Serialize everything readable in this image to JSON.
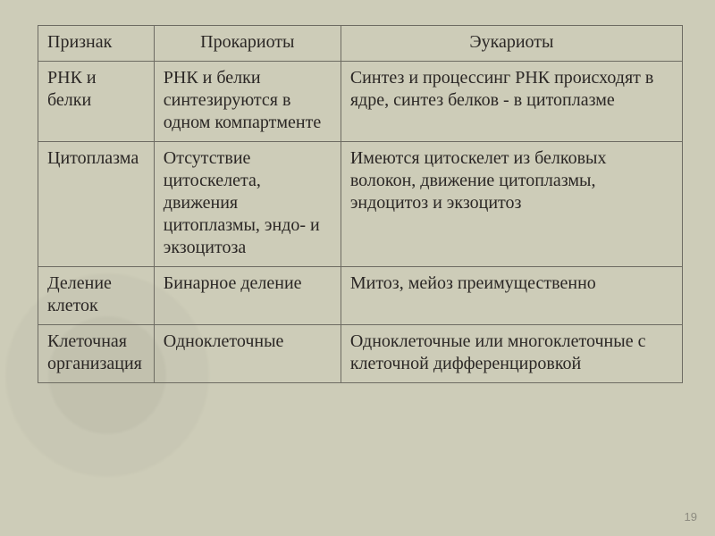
{
  "table": {
    "background_color": "#cdccb8",
    "border_color": "#6d6b62",
    "text_color": "#2b2725",
    "font_family": "Georgia, serif",
    "font_size_pt": 15,
    "column_widths_pct": [
      18,
      29,
      53
    ],
    "headers": [
      "Признак",
      "Прокариоты",
      "Эукариоты"
    ],
    "rows": [
      {
        "c0": "РНК и белки",
        "c1": "РНК и белки синтезируются в одном компартменте",
        "c2": "Синтез и процессинг РНК происходят в ядре, синтез белков - в цитоплазме"
      },
      {
        "c0": "Цитоплазма",
        "c1": "Отсутствие цитоскелета, движения цитоплазмы, эндо- и экзоцитоза",
        "c2": "Имеются цитоскелет из белковых волокон, движение цитоплазмы, эндоцитоз и экзоцитоз"
      },
      {
        "c0": "Деление клеток",
        "c1": "Бинарное деление",
        "c2": "Митоз, мейоз преимущественно"
      },
      {
        "c0": "Клеточная организация",
        "c1": "Одноклеточные",
        "c2": "Одноклеточные или многоклеточные с клеточной дифференцировкой"
      }
    ]
  },
  "page_number": "19"
}
